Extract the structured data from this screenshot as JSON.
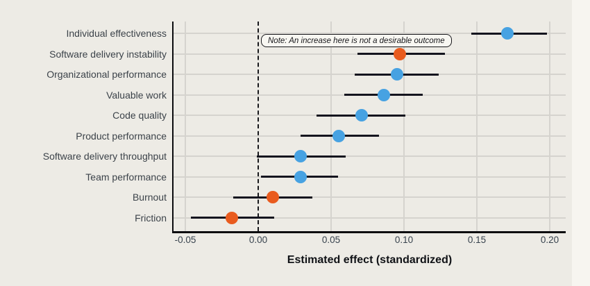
{
  "chart_data": {
    "type": "scatter",
    "subtype": "dot-plot-with-error-bars",
    "xlabel": "Estimated effect (standardized)",
    "x_ticks": [
      -0.05,
      0.0,
      0.05,
      0.1,
      0.15,
      0.2
    ],
    "x_tick_labels": [
      "-0.05",
      "0.00",
      "0.05",
      "0.10",
      "0.15",
      "0.20"
    ],
    "xlim": [
      -0.058,
      0.211
    ],
    "grid": true,
    "zero_reference_line": {
      "x": 0.0,
      "style": "dashed",
      "color": "#18181c"
    },
    "annotation": {
      "text": "Note: An increase here is not a desirable outcome"
    },
    "colors": {
      "desirable": "#47a2e2",
      "undesirable": "#e95b1e",
      "ci_line": "#14141e",
      "chart_background": "#edebe5",
      "page_background": "#f7f5f0",
      "gridline": "#d5d3ce"
    },
    "series": [
      {
        "label": "Individual effectiveness",
        "value": 0.171,
        "ci_low": 0.146,
        "ci_high": 0.198,
        "color_key": "desirable"
      },
      {
        "label": "Software delivery instability",
        "value": 0.097,
        "ci_low": 0.068,
        "ci_high": 0.128,
        "color_key": "undesirable"
      },
      {
        "label": "Organizational performance",
        "value": 0.095,
        "ci_low": 0.066,
        "ci_high": 0.124,
        "color_key": "desirable"
      },
      {
        "label": "Valuable work",
        "value": 0.086,
        "ci_low": 0.059,
        "ci_high": 0.113,
        "color_key": "desirable"
      },
      {
        "label": "Code quality",
        "value": 0.071,
        "ci_low": 0.04,
        "ci_high": 0.101,
        "color_key": "desirable"
      },
      {
        "label": "Product performance",
        "value": 0.055,
        "ci_low": 0.029,
        "ci_high": 0.083,
        "color_key": "desirable"
      },
      {
        "label": "Software delivery throughput",
        "value": 0.029,
        "ci_low": -0.001,
        "ci_high": 0.06,
        "color_key": "desirable"
      },
      {
        "label": "Team performance",
        "value": 0.029,
        "ci_low": 0.002,
        "ci_high": 0.055,
        "color_key": "desirable"
      },
      {
        "label": "Burnout",
        "value": 0.01,
        "ci_low": -0.017,
        "ci_high": 0.037,
        "color_key": "undesirable"
      },
      {
        "label": "Friction",
        "value": -0.018,
        "ci_low": -0.046,
        "ci_high": 0.011,
        "color_key": "undesirable"
      }
    ]
  }
}
